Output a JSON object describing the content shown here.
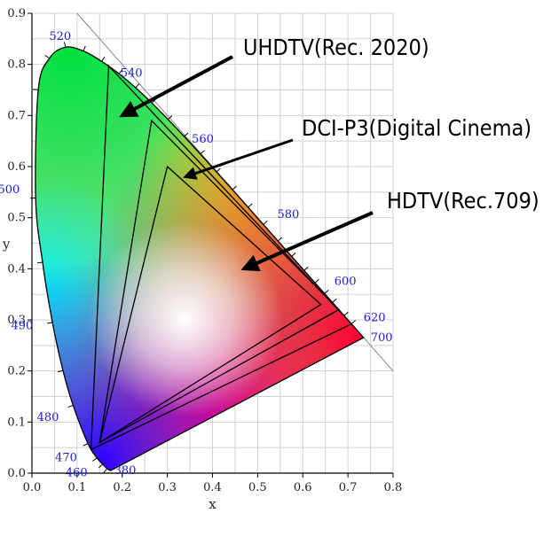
{
  "chart_data": {
    "type": "chromaticity-diagram",
    "xlabel": "x",
    "ylabel": "y",
    "xlim": [
      0.0,
      0.8
    ],
    "ylim": [
      0.0,
      0.9
    ],
    "x_ticks": [
      "0.0",
      "0.1",
      "0.2",
      "0.3",
      "0.4",
      "0.5",
      "0.6",
      "0.7",
      "0.8"
    ],
    "y_ticks": [
      "0.0",
      "0.1",
      "0.2",
      "0.3",
      "0.4",
      "0.5",
      "0.6",
      "0.7",
      "0.8",
      "0.9"
    ],
    "grid": true,
    "spectral_locus": [
      [
        0.1741,
        0.005
      ],
      [
        0.1666,
        0.0089
      ],
      [
        0.1566,
        0.0177
      ],
      [
        0.144,
        0.0297
      ],
      [
        0.1241,
        0.0578
      ],
      [
        0.0913,
        0.1327
      ],
      [
        0.0687,
        0.2007
      ],
      [
        0.0454,
        0.295
      ],
      [
        0.0235,
        0.4127
      ],
      [
        0.0082,
        0.5384
      ],
      [
        0.0139,
        0.7502
      ],
      [
        0.0389,
        0.812
      ],
      [
        0.0743,
        0.8338
      ],
      [
        0.1142,
        0.8262
      ],
      [
        0.1547,
        0.8059
      ],
      [
        0.1929,
        0.7816
      ],
      [
        0.2296,
        0.7543
      ],
      [
        0.2658,
        0.7243
      ],
      [
        0.3016,
        0.6923
      ],
      [
        0.3373,
        0.6589
      ],
      [
        0.3731,
        0.6245
      ],
      [
        0.4087,
        0.5896
      ],
      [
        0.4441,
        0.5547
      ],
      [
        0.4788,
        0.5202
      ],
      [
        0.5125,
        0.4866
      ],
      [
        0.5448,
        0.4544
      ],
      [
        0.5752,
        0.4242
      ],
      [
        0.6029,
        0.3965
      ],
      [
        0.627,
        0.3725
      ],
      [
        0.6482,
        0.3514
      ],
      [
        0.6658,
        0.334
      ],
      [
        0.6915,
        0.3083
      ],
      [
        0.7079,
        0.292
      ],
      [
        0.7347,
        0.2653
      ]
    ],
    "wavelength_labels": [
      {
        "text": "380",
        "x": 0.1741,
        "y": 0.005
      },
      {
        "text": "460",
        "x": 0.144,
        "y": 0.0297
      },
      {
        "text": "470",
        "x": 0.1241,
        "y": 0.0578
      },
      {
        "text": "480",
        "x": 0.0913,
        "y": 0.1327
      },
      {
        "text": "490",
        "x": 0.0454,
        "y": 0.295
      },
      {
        "text": "500",
        "x": 0.0082,
        "y": 0.5384
      },
      {
        "text": "520",
        "x": 0.0743,
        "y": 0.8338
      },
      {
        "text": "540",
        "x": 0.2296,
        "y": 0.7543
      },
      {
        "text": "560",
        "x": 0.3731,
        "y": 0.6245
      },
      {
        "text": "580",
        "x": 0.5125,
        "y": 0.4866
      },
      {
        "text": "600",
        "x": 0.627,
        "y": 0.3725
      },
      {
        "text": "620",
        "x": 0.6915,
        "y": 0.3083
      },
      {
        "text": "700",
        "x": 0.7347,
        "y": 0.2653
      }
    ],
    "gamuts": [
      {
        "name": "UHDTV(Rec. 2020)",
        "points": [
          [
            0.708,
            0.292
          ],
          [
            0.17,
            0.797
          ],
          [
            0.131,
            0.046
          ]
        ],
        "arrow_to": [
          0.2,
          0.7
        ]
      },
      {
        "name": "DCI-P3(Digital Cinema)",
        "points": [
          [
            0.68,
            0.32
          ],
          [
            0.265,
            0.69
          ],
          [
            0.15,
            0.06
          ]
        ],
        "arrow_to": [
          0.34,
          0.58
        ]
      },
      {
        "name": "HDTV(Rec.709)",
        "points": [
          [
            0.64,
            0.33
          ],
          [
            0.3,
            0.6
          ],
          [
            0.15,
            0.06
          ]
        ],
        "arrow_to": [
          0.47,
          0.4
        ]
      }
    ]
  }
}
